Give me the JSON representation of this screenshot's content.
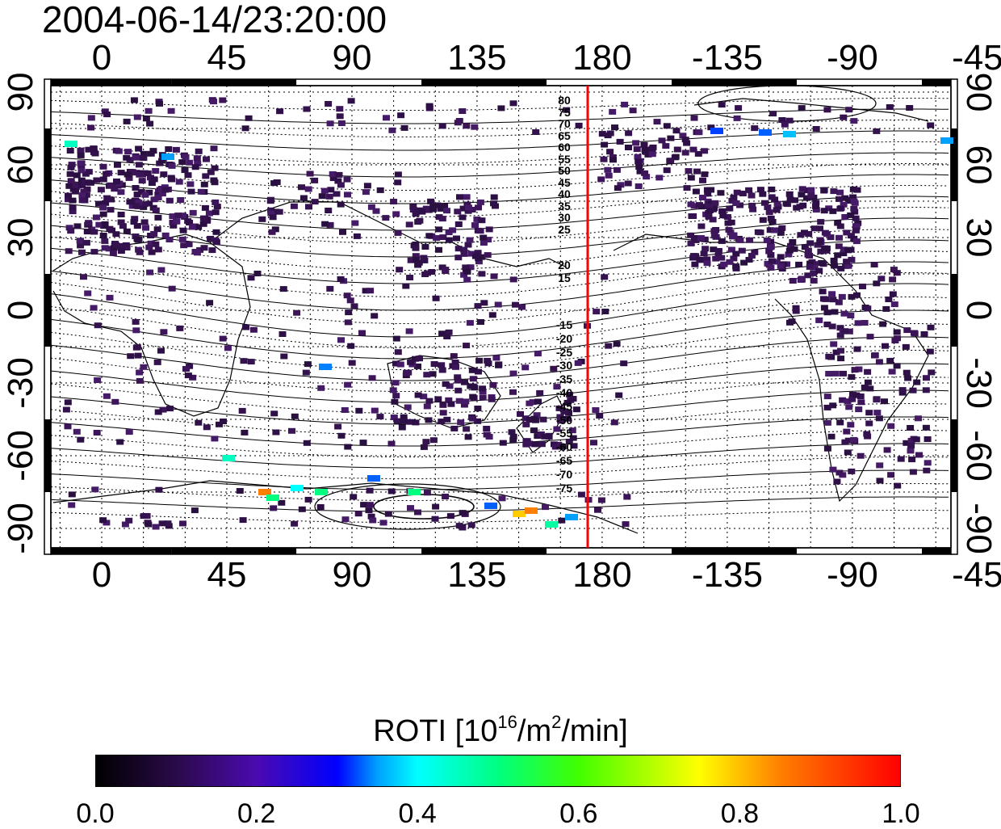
{
  "title": "2004-06-14/23:20:00",
  "map": {
    "lon_ticks_top": [
      "0",
      "45",
      "90",
      "135",
      "180",
      "-135",
      "-90",
      "-45"
    ],
    "lon_ticks_bottom": [
      "0",
      "45",
      "90",
      "135",
      "180",
      "-135",
      "-90",
      "-45"
    ],
    "lat_ticks_left": [
      "90",
      "60",
      "30",
      "0",
      "-30",
      "-60",
      "-90"
    ],
    "lat_ticks_right": [
      "90",
      "60",
      "30",
      "0",
      "-30",
      "-60",
      "-90"
    ],
    "magnetic_latitude_labels_north": [
      "80",
      "75",
      "70",
      "65",
      "60",
      "55",
      "50",
      "45",
      "40",
      "35",
      "30",
      "25",
      "20",
      "15"
    ],
    "magnetic_latitude_labels_south": [
      "-15",
      "-20",
      "-25",
      "-30",
      "-35",
      "-40",
      "-45",
      "-50",
      "-55",
      "-60",
      "-65",
      "-70",
      "-75"
    ],
    "midnight_meridian_color": "#ff0000",
    "grid": "dotted"
  },
  "colorbar": {
    "title": "ROTI  [10",
    "title_sup1": "16",
    "title_mid": "/m",
    "title_sup2": "2",
    "title_end": "/min]",
    "ticks": [
      "0.0",
      "0.2",
      "0.4",
      "0.6",
      "0.8",
      "1.0"
    ],
    "range": [
      0.0,
      1.0
    ]
  }
}
